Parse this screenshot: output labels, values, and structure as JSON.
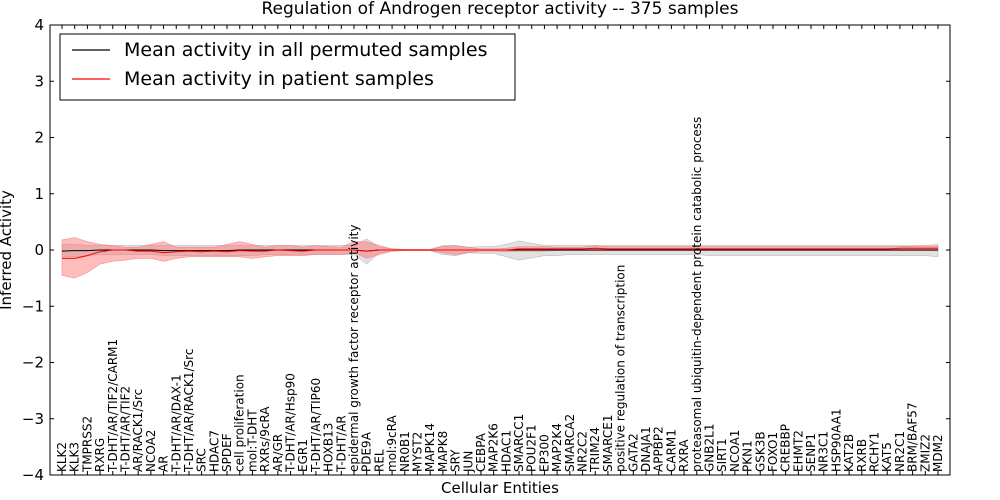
{
  "chart_data": {
    "type": "line",
    "title": "Regulation of Androgen receptor activity -- 375 samples",
    "xlabel": "Cellular Entities",
    "ylabel": "Inferred Activity",
    "ylim": [
      -4,
      4
    ],
    "yticks": [
      -4,
      -3,
      -2,
      -1,
      0,
      1,
      2,
      3,
      4
    ],
    "ytick_labels": [
      "−4",
      "−3",
      "−2",
      "−1",
      "0",
      "1",
      "2",
      "3",
      "4"
    ],
    "grid": false,
    "legend_position": "top-left",
    "categories": [
      "KLK2",
      "KLK3",
      "TMPRSS2",
      "RXRG",
      "T-DHT/AR/TIF2/CARM1",
      "T-DHT/AR/TIF2",
      "AR/RACK1/Src",
      "NCOA2",
      "AR",
      "T-DHT/AR/DAX-1",
      "T-DHT/AR/RACK1/Src",
      "SRC",
      "HDAC7",
      "SPDEF",
      "cell proliferation",
      "mol:T-DHT",
      "RXRs/9cRA",
      "AR/GR",
      "T-DHT/AR/Hsp90",
      "EGR1",
      "T-DHT/AR/TIP60",
      "HOXB13",
      "T-DHT/AR",
      "epidermal growth factor receptor activity",
      "PDE9A",
      "REL",
      "mol:9cRA",
      "NR0B1",
      "MYST2",
      "MAPK14",
      "MAPK8",
      "SRY",
      "JUN",
      "CEBPA",
      "MAP2K6",
      "HDAC1",
      "SMARCC1",
      "POU2F1",
      "EP300",
      "MAP2K4",
      "SMARCA2",
      "NR2C2",
      "TRIM24",
      "SMARCE1",
      "positive regulation of transcription",
      "GATA2",
      "DNAJA1",
      "APPBP2",
      "CARM1",
      "RXRA",
      "proteasomal ubiquitin-dependent protein catabolic process",
      "GNB2L1",
      "SIRT1",
      "NCOA1",
      "PKN1",
      "GSK3B",
      "FOXO1",
      "CREBBP",
      "EHMT2",
      "SENP1",
      "NR3C1",
      "HSP90AA1",
      "KAT2B",
      "RXRB",
      "RCHY1",
      "KAT5",
      "NR2C1",
      "BRM/BAF57",
      "ZMIZ2",
      "MDM2"
    ],
    "series": [
      {
        "name": "Mean activity in all permuted samples",
        "color": "#000000",
        "values": [
          -0.02,
          -0.01,
          -0.01,
          0.0,
          0.0,
          0.0,
          0.0,
          0.0,
          -0.01,
          -0.01,
          -0.01,
          -0.01,
          -0.01,
          -0.01,
          0.0,
          0.0,
          0.0,
          0.0,
          0.0,
          0.0,
          0.0,
          0.0,
          0.0,
          0.0,
          -0.02,
          0.0,
          0.0,
          0.0,
          0.0,
          0.0,
          0.0,
          0.0,
          0.0,
          0.0,
          0.0,
          0.0,
          0.0,
          0.0,
          0.0,
          0.0,
          0.0,
          0.0,
          0.0,
          0.0,
          0.0,
          0.0,
          0.0,
          0.0,
          0.0,
          0.0,
          0.0,
          0.0,
          0.0,
          0.0,
          0.0,
          0.0,
          0.0,
          0.0,
          0.0,
          0.0,
          0.0,
          0.0,
          0.0,
          0.0,
          0.0,
          0.0,
          0.0,
          0.0,
          0.0,
          0.0
        ],
        "band_lower": [
          -0.12,
          -0.12,
          -0.1,
          -0.08,
          -0.08,
          -0.08,
          -0.08,
          -0.08,
          -0.1,
          -0.1,
          -0.1,
          -0.1,
          -0.1,
          -0.1,
          -0.1,
          -0.1,
          -0.08,
          -0.08,
          -0.08,
          -0.08,
          -0.08,
          -0.08,
          -0.08,
          -0.08,
          -0.25,
          -0.05,
          -0.02,
          -0.01,
          -0.01,
          -0.01,
          -0.08,
          -0.1,
          -0.05,
          -0.06,
          -0.06,
          -0.12,
          -0.18,
          -0.14,
          -0.1,
          -0.1,
          -0.08,
          -0.08,
          -0.08,
          -0.08,
          -0.08,
          -0.08,
          -0.08,
          -0.08,
          -0.08,
          -0.08,
          -0.08,
          -0.1,
          -0.1,
          -0.1,
          -0.1,
          -0.1,
          -0.1,
          -0.1,
          -0.1,
          -0.1,
          -0.1,
          -0.1,
          -0.1,
          -0.1,
          -0.1,
          -0.1,
          -0.1,
          -0.1,
          -0.1,
          -0.12
        ],
        "band_upper": [
          0.1,
          0.1,
          0.08,
          0.08,
          0.08,
          0.08,
          0.08,
          0.08,
          0.08,
          0.08,
          0.08,
          0.08,
          0.08,
          0.08,
          0.08,
          0.08,
          0.08,
          0.08,
          0.08,
          0.08,
          0.08,
          0.08,
          0.08,
          0.08,
          0.2,
          0.05,
          0.02,
          0.01,
          0.01,
          0.01,
          0.08,
          0.08,
          0.05,
          0.06,
          0.06,
          0.1,
          0.16,
          0.12,
          0.08,
          0.08,
          0.08,
          0.08,
          0.08,
          0.08,
          0.08,
          0.08,
          0.08,
          0.08,
          0.08,
          0.08,
          0.08,
          0.08,
          0.08,
          0.08,
          0.08,
          0.08,
          0.08,
          0.08,
          0.08,
          0.08,
          0.08,
          0.08,
          0.08,
          0.08,
          0.08,
          0.08,
          0.08,
          0.08,
          0.08,
          0.1
        ]
      },
      {
        "name": "Mean activity in patient samples",
        "color": "#ff0000",
        "values": [
          -0.15,
          -0.15,
          -0.1,
          -0.03,
          0.0,
          0.0,
          -0.02,
          -0.02,
          -0.05,
          -0.03,
          -0.02,
          -0.03,
          -0.02,
          -0.03,
          -0.01,
          -0.02,
          -0.02,
          0.0,
          -0.01,
          -0.02,
          0.0,
          0.0,
          0.0,
          0.0,
          -0.02,
          0.0,
          0.0,
          0.0,
          0.0,
          0.0,
          0.0,
          0.0,
          0.0,
          0.0,
          0.0,
          0.0,
          0.02,
          0.02,
          0.02,
          0.02,
          0.02,
          0.02,
          0.03,
          0.02,
          0.02,
          0.02,
          0.02,
          0.02,
          0.02,
          0.02,
          0.02,
          0.02,
          0.02,
          0.02,
          0.02,
          0.02,
          0.02,
          0.02,
          0.02,
          0.02,
          0.02,
          0.02,
          0.02,
          0.02,
          0.02,
          0.02,
          0.03,
          0.03,
          0.03,
          0.03
        ],
        "band_lower": [
          -0.45,
          -0.5,
          -0.4,
          -0.25,
          -0.2,
          -0.18,
          -0.15,
          -0.15,
          -0.2,
          -0.15,
          -0.12,
          -0.12,
          -0.12,
          -0.12,
          -0.12,
          -0.15,
          -0.12,
          -0.1,
          -0.1,
          -0.1,
          -0.08,
          -0.08,
          -0.08,
          -0.05,
          -0.15,
          -0.08,
          -0.02,
          -0.01,
          -0.01,
          -0.01,
          -0.05,
          -0.08,
          -0.05,
          -0.02,
          -0.02,
          -0.03,
          -0.02,
          -0.02,
          -0.02,
          -0.01,
          -0.01,
          -0.01,
          -0.01,
          -0.01,
          -0.01,
          -0.01,
          -0.01,
          -0.01,
          -0.01,
          -0.01,
          -0.01,
          -0.01,
          -0.01,
          -0.01,
          -0.01,
          -0.01,
          -0.01,
          -0.01,
          -0.01,
          -0.01,
          -0.01,
          -0.01,
          -0.01,
          -0.01,
          -0.01,
          -0.01,
          -0.01,
          -0.01,
          -0.01,
          -0.01
        ],
        "band_upper": [
          0.18,
          0.22,
          0.15,
          0.1,
          0.08,
          0.05,
          0.05,
          0.1,
          0.15,
          0.05,
          0.05,
          0.05,
          0.05,
          0.1,
          0.15,
          0.1,
          0.05,
          0.08,
          0.08,
          0.05,
          0.08,
          0.06,
          0.05,
          0.15,
          0.15,
          0.08,
          0.02,
          0.01,
          0.01,
          0.01,
          0.06,
          0.08,
          0.05,
          0.02,
          0.02,
          0.03,
          0.06,
          0.06,
          0.06,
          0.05,
          0.05,
          0.05,
          0.08,
          0.06,
          0.06,
          0.06,
          0.06,
          0.06,
          0.06,
          0.06,
          0.06,
          0.06,
          0.06,
          0.06,
          0.06,
          0.06,
          0.06,
          0.06,
          0.06,
          0.06,
          0.06,
          0.06,
          0.06,
          0.06,
          0.06,
          0.06,
          0.06,
          0.07,
          0.07,
          0.07
        ]
      }
    ]
  }
}
